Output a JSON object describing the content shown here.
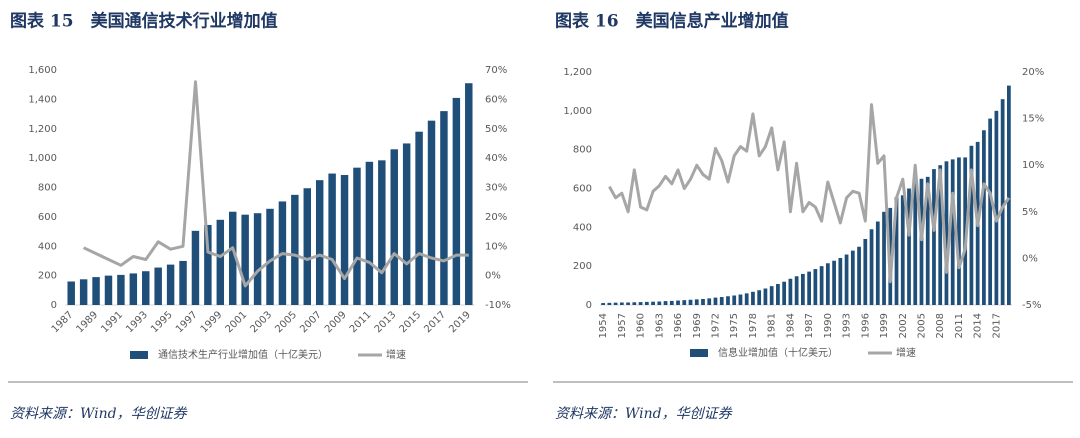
{
  "chart_data": [
    {
      "type": "bar",
      "title": "图表 15　美国通信技术行业增加值",
      "source": "资料来源：Wind，华创证券",
      "categories": [
        "1987",
        null,
        "1989",
        null,
        "1991",
        null,
        "1993",
        null,
        "1995",
        null,
        "1997",
        null,
        "1999",
        null,
        "2001",
        null,
        "2003",
        null,
        "2005",
        null,
        "2007",
        null,
        "2009",
        null,
        "2011",
        null,
        "2013",
        null,
        "2015",
        null,
        "2017",
        null,
        "2019"
      ],
      "series": [
        {
          "name": "通信技术生产行业增加值（十亿美元）",
          "type": "bar",
          "color": "#1f4e79",
          "values": [
            160,
            175,
            190,
            200,
            205,
            215,
            230,
            255,
            275,
            300,
            505,
            545,
            580,
            635,
            615,
            625,
            655,
            705,
            750,
            795,
            850,
            895,
            885,
            935,
            975,
            985,
            1060,
            1100,
            1180,
            1255,
            1320,
            1410,
            1510
          ]
        },
        {
          "name": "增速",
          "type": "line",
          "axis": "y2",
          "color": "#a6a6a6",
          "values": [
            null,
            9.5,
            7.5,
            5.5,
            3.5,
            6.5,
            5.5,
            11.5,
            9,
            10,
            66,
            8,
            6.5,
            9.5,
            -3.5,
            1.5,
            5,
            7.5,
            7,
            5.5,
            7,
            5.5,
            -1,
            6,
            4.5,
            1,
            7.5,
            4,
            7.5,
            6,
            5,
            7,
            7
          ]
        }
      ],
      "ylim": [
        0,
        1600
      ],
      "yticks": [
        0,
        200,
        400,
        600,
        800,
        {
          "value": 1000,
          "label": "1,000"
        },
        {
          "value": 1200,
          "label": "1,200"
        },
        {
          "value": 1400,
          "label": "1,400"
        },
        {
          "value": 1600,
          "label": "1,600"
        }
      ],
      "y2lim": [
        -10,
        70
      ],
      "y2ticks": [
        {
          "value": -10,
          "label": "-10%"
        },
        {
          "value": 0,
          "label": "0%"
        },
        {
          "value": 10,
          "label": "10%"
        },
        {
          "value": 20,
          "label": "20%"
        },
        {
          "value": 30,
          "label": "30%"
        },
        {
          "value": 40,
          "label": "40%"
        },
        {
          "value": 50,
          "label": "50%"
        },
        {
          "value": 60,
          "label": "60%"
        },
        {
          "value": 70,
          "label": "70%"
        }
      ],
      "grid": false,
      "legend": "bottom"
    },
    {
      "type": "bar",
      "title": "图表 16　美国信息产业增加值",
      "source": "资料来源：Wind，华创证券",
      "categories": [
        "1954",
        null,
        null,
        "1957",
        null,
        null,
        "1960",
        null,
        null,
        "1963",
        null,
        null,
        "1966",
        null,
        null,
        "1969",
        null,
        null,
        "1972",
        null,
        null,
        "1975",
        null,
        null,
        "1978",
        null,
        null,
        "1981",
        null,
        null,
        "1984",
        null,
        null,
        "1987",
        null,
        null,
        "1990",
        null,
        null,
        "1993",
        null,
        null,
        "1996",
        null,
        null,
        "1999",
        null,
        null,
        "2002",
        null,
        null,
        "2005",
        null,
        null,
        "2008",
        null,
        null,
        "2011",
        null,
        null,
        "2014",
        null,
        null,
        "2017",
        null,
        null
      ],
      "series": [
        {
          "name": "信息业增加值（十亿美元）",
          "type": "bar",
          "color": "#1f4e79",
          "values": [
            10,
            11,
            12,
            13,
            13,
            14,
            15,
            16,
            17,
            18,
            20,
            21,
            23,
            25,
            27,
            29,
            31,
            34,
            38,
            41,
            45,
            49,
            54,
            60,
            68,
            76,
            85,
            97,
            108,
            120,
            135,
            148,
            160,
            172,
            185,
            200,
            215,
            228,
            242,
            260,
            280,
            300,
            340,
            390,
            430,
            480,
            500,
            555,
            565,
            600,
            630,
            650,
            660,
            700,
            720,
            740,
            750,
            760,
            760,
            820,
            840,
            900,
            960,
            1000,
            1060,
            1130
          ]
        },
        {
          "name": "增速",
          "type": "line",
          "axis": "y2",
          "color": "#a6a6a6",
          "values": [
            null,
            7.7,
            6.5,
            7,
            5,
            9.5,
            5.5,
            5.2,
            7.2,
            7.8,
            8.8,
            8,
            9.5,
            7.5,
            8.5,
            10,
            9,
            8.5,
            11.8,
            10.5,
            8.2,
            11,
            12,
            11.5,
            15.5,
            11,
            12,
            14,
            9.5,
            12.5,
            5,
            10.2,
            5,
            6,
            5.5,
            4,
            8.2,
            6,
            3.8,
            6.5,
            7.2,
            7,
            4,
            16.5,
            10.2,
            11,
            -2.5,
            6.5,
            8.5,
            2.5,
            10,
            2,
            8,
            3,
            9.5,
            -1.5,
            7,
            -1,
            1,
            9.5,
            3.5,
            8,
            7,
            4,
            5.5,
            6.5
          ]
        }
      ],
      "ylim": [
        0,
        1200
      ],
      "yticks": [
        0,
        200,
        400,
        600,
        800,
        {
          "value": 1000,
          "label": "1,000"
        },
        {
          "value": 1200,
          "label": "1,200"
        }
      ],
      "y2lim": [
        -5,
        20
      ],
      "y2ticks": [
        {
          "value": -5,
          "label": "-5%"
        },
        {
          "value": 0,
          "label": "0%"
        },
        {
          "value": 5,
          "label": "5%"
        },
        {
          "value": 10,
          "label": "10%"
        },
        {
          "value": 15,
          "label": "15%"
        },
        {
          "value": 20,
          "label": "20%"
        }
      ],
      "grid": false,
      "legend": "bottom"
    }
  ]
}
